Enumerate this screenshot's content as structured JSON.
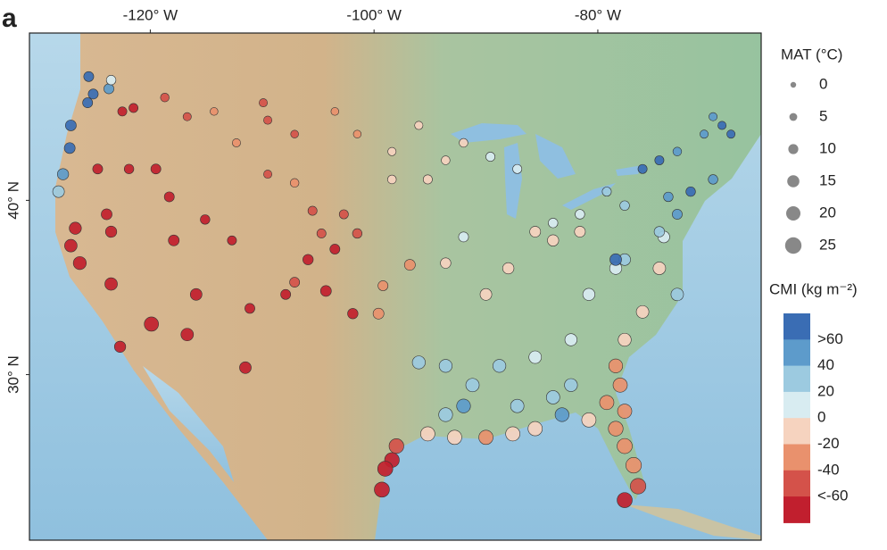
{
  "map": {
    "panel_label": "a",
    "xlim": [
      -130.8,
      -65.4
    ],
    "ylim": [
      20.5,
      49.6
    ],
    "xticks": [
      {
        "value": -120,
        "label": "-120° W"
      },
      {
        "value": -100,
        "label": "-100° W"
      },
      {
        "value": -80,
        "label": "-80° W"
      }
    ],
    "yticks": [
      {
        "value": 40,
        "label": "40° N"
      },
      {
        "value": 30,
        "label": "30° N"
      }
    ],
    "mat_title": "MAT (°C)",
    "mat_legend": [
      0,
      5,
      10,
      15,
      20,
      25
    ],
    "cmi_title": "CMI (kg m⁻²)",
    "cmi_breaks": [
      {
        "value": 60,
        "label": ">60"
      },
      40,
      20,
      0,
      -20,
      -40,
      {
        "value": -60,
        "label": "<-60"
      }
    ],
    "cmi_colors": [
      "#3a6db4",
      "#5d9bcb",
      "#9ccae0",
      "#d8ecf1",
      "#f6d3bf",
      "#e9916d",
      "#d4524a",
      "#c11f2e"
    ],
    "points": [
      {
        "lon": -125.5,
        "lat": 47.1,
        "mat": 10,
        "cmi": 70
      },
      {
        "lon": -125.1,
        "lat": 46.1,
        "mat": 10,
        "cmi": 70
      },
      {
        "lon": -125.6,
        "lat": 45.6,
        "mat": 10,
        "cmi": 70
      },
      {
        "lon": -123.7,
        "lat": 46.4,
        "mat": 10,
        "cmi": 40
      },
      {
        "lon": -127.1,
        "lat": 44.3,
        "mat": 12,
        "cmi": 70
      },
      {
        "lon": -127.2,
        "lat": 43.0,
        "mat": 12,
        "cmi": 70
      },
      {
        "lon": -127.8,
        "lat": 41.5,
        "mat": 13,
        "cmi": 40
      },
      {
        "lon": -128.2,
        "lat": 40.5,
        "mat": 14,
        "cmi": 20
      },
      {
        "lon": -123.5,
        "lat": 46.9,
        "mat": 9,
        "cmi": 0
      },
      {
        "lon": -121.5,
        "lat": 45.3,
        "mat": 8,
        "cmi": -70
      },
      {
        "lon": -122.5,
        "lat": 45.1,
        "mat": 8,
        "cmi": -70
      },
      {
        "lon": -118.7,
        "lat": 45.9,
        "mat": 7,
        "cmi": -50
      },
      {
        "lon": -116.7,
        "lat": 44.8,
        "mat": 6,
        "cmi": -50
      },
      {
        "lon": -114.3,
        "lat": 45.1,
        "mat": 5,
        "cmi": -40
      },
      {
        "lon": -109.9,
        "lat": 45.6,
        "mat": 6,
        "cmi": -50
      },
      {
        "lon": -109.5,
        "lat": 44.6,
        "mat": 6,
        "cmi": -60
      },
      {
        "lon": -107.1,
        "lat": 43.8,
        "mat": 5,
        "cmi": -50
      },
      {
        "lon": -103.5,
        "lat": 45.1,
        "mat": 5,
        "cmi": -30
      },
      {
        "lon": -101.5,
        "lat": 43.8,
        "mat": 5,
        "cmi": -40
      },
      {
        "lon": -124.7,
        "lat": 41.8,
        "mat": 10,
        "cmi": -70
      },
      {
        "lon": -121.9,
        "lat": 41.8,
        "mat": 9,
        "cmi": -70
      },
      {
        "lon": -119.5,
        "lat": 41.8,
        "mat": 10,
        "cmi": -70
      },
      {
        "lon": -118.3,
        "lat": 40.2,
        "mat": 10,
        "cmi": -70
      },
      {
        "lon": -115.1,
        "lat": 38.9,
        "mat": 9,
        "cmi": -70
      },
      {
        "lon": -112.7,
        "lat": 37.7,
        "mat": 8,
        "cmi": -70
      },
      {
        "lon": -126.7,
        "lat": 38.4,
        "mat": 15,
        "cmi": -70
      },
      {
        "lon": -127.1,
        "lat": 37.4,
        "mat": 16,
        "cmi": -70
      },
      {
        "lon": -126.3,
        "lat": 36.4,
        "mat": 17,
        "cmi": -70
      },
      {
        "lon": -123.5,
        "lat": 38.2,
        "mat": 13,
        "cmi": -70
      },
      {
        "lon": -123.9,
        "lat": 39.2,
        "mat": 12,
        "cmi": -70
      },
      {
        "lon": -117.9,
        "lat": 37.7,
        "mat": 12,
        "cmi": -70
      },
      {
        "lon": -123.5,
        "lat": 35.2,
        "mat": 16,
        "cmi": -70
      },
      {
        "lon": -115.9,
        "lat": 34.6,
        "mat": 14,
        "cmi": -70
      },
      {
        "lon": -119.9,
        "lat": 32.9,
        "mat": 20,
        "cmi": -70
      },
      {
        "lon": -116.7,
        "lat": 32.3,
        "mat": 16,
        "cmi": -70
      },
      {
        "lon": -111.5,
        "lat": 30.4,
        "mat": 14,
        "cmi": -70
      },
      {
        "lon": -122.7,
        "lat": 31.6,
        "mat": 13,
        "cmi": -70
      },
      {
        "lon": -111.1,
        "lat": 33.8,
        "mat": 10,
        "cmi": -70
      },
      {
        "lon": -107.9,
        "lat": 34.6,
        "mat": 10,
        "cmi": -70
      },
      {
        "lon": -104.3,
        "lat": 34.8,
        "mat": 12,
        "cmi": -70
      },
      {
        "lon": -101.9,
        "lat": 33.5,
        "mat": 11,
        "cmi": -70
      },
      {
        "lon": -105.5,
        "lat": 39.4,
        "mat": 8,
        "cmi": -60
      },
      {
        "lon": -102.7,
        "lat": 39.2,
        "mat": 8,
        "cmi": -60
      },
      {
        "lon": -104.7,
        "lat": 38.1,
        "mat": 8,
        "cmi": -60
      },
      {
        "lon": -101.5,
        "lat": 38.1,
        "mat": 9,
        "cmi": -50
      },
      {
        "lon": -103.5,
        "lat": 37.2,
        "mat": 10,
        "cmi": -70
      },
      {
        "lon": -105.9,
        "lat": 36.6,
        "mat": 11,
        "cmi": -70
      },
      {
        "lon": -107.1,
        "lat": 35.3,
        "mat": 10,
        "cmi": -60
      },
      {
        "lon": -99.6,
        "lat": 33.5,
        "mat": 12,
        "cmi": -40
      },
      {
        "lon": -99.2,
        "lat": 35.1,
        "mat": 10,
        "cmi": -40
      },
      {
        "lon": -107.1,
        "lat": 41.0,
        "mat": 7,
        "cmi": -40
      },
      {
        "lon": -109.5,
        "lat": 41.5,
        "mat": 6,
        "cmi": -50
      },
      {
        "lon": -112.3,
        "lat": 43.3,
        "mat": 6,
        "cmi": -40
      },
      {
        "lon": -98.4,
        "lat": 42.8,
        "mat": 6,
        "cmi": -20
      },
      {
        "lon": -96.0,
        "lat": 44.3,
        "mat": 6,
        "cmi": -10
      },
      {
        "lon": -93.6,
        "lat": 42.3,
        "mat": 7,
        "cmi": -10
      },
      {
        "lon": -92.0,
        "lat": 43.3,
        "mat": 7,
        "cmi": -10
      },
      {
        "lon": -95.2,
        "lat": 41.2,
        "mat": 8,
        "cmi": -10
      },
      {
        "lon": -89.6,
        "lat": 42.5,
        "mat": 8,
        "cmi": 0
      },
      {
        "lon": -87.2,
        "lat": 41.8,
        "mat": 8,
        "cmi": 0
      },
      {
        "lon": -98.4,
        "lat": 41.2,
        "mat": 7,
        "cmi": -20
      },
      {
        "lon": -92.0,
        "lat": 37.9,
        "mat": 10,
        "cmi": 0
      },
      {
        "lon": -93.6,
        "lat": 36.4,
        "mat": 11,
        "cmi": -20
      },
      {
        "lon": -96.8,
        "lat": 36.3,
        "mat": 12,
        "cmi": -30
      },
      {
        "lon": -90.0,
        "lat": 34.6,
        "mat": 14,
        "cmi": -10
      },
      {
        "lon": -88.0,
        "lat": 36.1,
        "mat": 13,
        "cmi": -10
      },
      {
        "lon": -85.6,
        "lat": 38.2,
        "mat": 12,
        "cmi": -10
      },
      {
        "lon": -84.0,
        "lat": 37.7,
        "mat": 13,
        "cmi": -20
      },
      {
        "lon": -81.6,
        "lat": 38.2,
        "mat": 12,
        "cmi": -20
      },
      {
        "lon": -96.0,
        "lat": 30.7,
        "mat": 17,
        "cmi": 20
      },
      {
        "lon": -93.6,
        "lat": 30.5,
        "mat": 17,
        "cmi": 20
      },
      {
        "lon": -91.2,
        "lat": 29.4,
        "mat": 18,
        "cmi": 20
      },
      {
        "lon": -88.8,
        "lat": 30.5,
        "mat": 17,
        "cmi": 20
      },
      {
        "lon": -87.2,
        "lat": 28.2,
        "mat": 18,
        "cmi": 20
      },
      {
        "lon": -93.6,
        "lat": 27.7,
        "mat": 19,
        "cmi": 20
      },
      {
        "lon": -92.0,
        "lat": 28.2,
        "mat": 19,
        "cmi": 40
      },
      {
        "lon": -84.0,
        "lat": 28.7,
        "mat": 18,
        "cmi": 20
      },
      {
        "lon": -82.4,
        "lat": 29.4,
        "mat": 17,
        "cmi": 20
      },
      {
        "lon": -83.2,
        "lat": 27.7,
        "mat": 19,
        "cmi": 40
      },
      {
        "lon": -85.6,
        "lat": 31.0,
        "mat": 16,
        "cmi": 0
      },
      {
        "lon": -82.4,
        "lat": 32.0,
        "mat": 15,
        "cmi": 0
      },
      {
        "lon": -77.6,
        "lat": 32.0,
        "mat": 17,
        "cmi": -20
      },
      {
        "lon": -76.0,
        "lat": 33.6,
        "mat": 16,
        "cmi": -10
      },
      {
        "lon": -78.4,
        "lat": 36.1,
        "mat": 15,
        "cmi": 0
      },
      {
        "lon": -80.8,
        "lat": 34.6,
        "mat": 15,
        "cmi": 0
      },
      {
        "lon": -77.6,
        "lat": 36.6,
        "mat": 14,
        "cmi": 20
      },
      {
        "lon": -74.5,
        "lat": 36.1,
        "mat": 16,
        "cmi": -20
      },
      {
        "lon": -72.9,
        "lat": 34.6,
        "mat": 16,
        "cmi": 20
      },
      {
        "lon": -74.1,
        "lat": 37.9,
        "mat": 14,
        "cmi": 0
      },
      {
        "lon": -78.4,
        "lat": 36.6,
        "mat": 14,
        "cmi": 70
      },
      {
        "lon": -95.2,
        "lat": 26.6,
        "mat": 20,
        "cmi": -20
      },
      {
        "lon": -92.8,
        "lat": 26.4,
        "mat": 20,
        "cmi": -20
      },
      {
        "lon": -90.0,
        "lat": 26.4,
        "mat": 20,
        "cmi": -30
      },
      {
        "lon": -87.6,
        "lat": 26.6,
        "mat": 20,
        "cmi": -20
      },
      {
        "lon": -85.6,
        "lat": 26.9,
        "mat": 20,
        "cmi": -20
      },
      {
        "lon": -98.0,
        "lat": 25.9,
        "mat": 21,
        "cmi": -60
      },
      {
        "lon": -98.4,
        "lat": 25.1,
        "mat": 21,
        "cmi": -70
      },
      {
        "lon": -99.0,
        "lat": 24.6,
        "mat": 22,
        "cmi": -70
      },
      {
        "lon": -99.3,
        "lat": 23.4,
        "mat": 22,
        "cmi": -70
      },
      {
        "lon": -80.8,
        "lat": 27.4,
        "mat": 20,
        "cmi": -20
      },
      {
        "lon": -78.4,
        "lat": 26.9,
        "mat": 21,
        "cmi": -30
      },
      {
        "lon": -77.6,
        "lat": 25.9,
        "mat": 22,
        "cmi": -30
      },
      {
        "lon": -76.8,
        "lat": 24.8,
        "mat": 23,
        "cmi": -30
      },
      {
        "lon": -76.4,
        "lat": 23.6,
        "mat": 23,
        "cmi": -60
      },
      {
        "lon": -77.6,
        "lat": 27.9,
        "mat": 20,
        "cmi": -40
      },
      {
        "lon": -78.0,
        "lat": 29.4,
        "mat": 20,
        "cmi": -40
      },
      {
        "lon": -78.4,
        "lat": 30.5,
        "mat": 19,
        "cmi": -30
      },
      {
        "lon": -77.6,
        "lat": 22.8,
        "mat": 22,
        "cmi": -70
      },
      {
        "lon": -79.2,
        "lat": 28.4,
        "mat": 20,
        "cmi": -30
      },
      {
        "lon": -76.0,
        "lat": 41.8,
        "mat": 8,
        "cmi": 70
      },
      {
        "lon": -74.5,
        "lat": 42.3,
        "mat": 8,
        "cmi": 70
      },
      {
        "lon": -72.9,
        "lat": 42.8,
        "mat": 7,
        "cmi": 40
      },
      {
        "lon": -70.5,
        "lat": 43.8,
        "mat": 6,
        "cmi": 40
      },
      {
        "lon": -68.9,
        "lat": 44.3,
        "mat": 6,
        "cmi": 70
      },
      {
        "lon": -68.1,
        "lat": 43.8,
        "mat": 6,
        "cmi": 70
      },
      {
        "lon": -69.7,
        "lat": 41.2,
        "mat": 9,
        "cmi": 40
      },
      {
        "lon": -71.7,
        "lat": 40.5,
        "mat": 9,
        "cmi": 70
      },
      {
        "lon": -73.7,
        "lat": 40.2,
        "mat": 9,
        "cmi": 40
      },
      {
        "lon": -72.9,
        "lat": 39.2,
        "mat": 10,
        "cmi": 40
      },
      {
        "lon": -77.6,
        "lat": 39.7,
        "mat": 9,
        "cmi": 20
      },
      {
        "lon": -79.2,
        "lat": 40.5,
        "mat": 8,
        "cmi": 20
      },
      {
        "lon": -81.6,
        "lat": 39.2,
        "mat": 9,
        "cmi": 0
      },
      {
        "lon": -84.0,
        "lat": 38.7,
        "mat": 9,
        "cmi": 0
      },
      {
        "lon": -74.5,
        "lat": 38.2,
        "mat": 11,
        "cmi": 20
      },
      {
        "lon": -69.7,
        "lat": 44.8,
        "mat": 6,
        "cmi": 40
      }
    ]
  }
}
